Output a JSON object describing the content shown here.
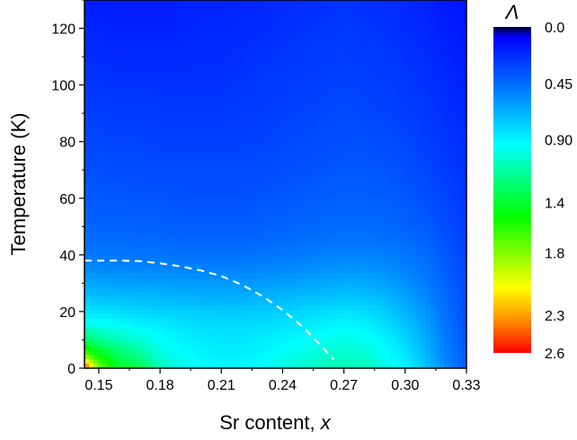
{
  "chart_data": {
    "type": "heatmap",
    "title": "",
    "xlabel_text": "Sr content, ",
    "xlabel_var": "x",
    "ylabel": "Temperature (K)",
    "xlim": [
      0.143,
      0.33
    ],
    "ylim": [
      0,
      130
    ],
    "x_ticks": [
      0.15,
      0.18,
      0.21,
      0.24,
      0.27,
      0.3,
      0.33
    ],
    "x_tick_labels": [
      "0.15",
      "0.18",
      "0.21",
      "0.24",
      "0.27",
      "0.30",
      "0.33"
    ],
    "y_ticks": [
      0,
      20,
      40,
      60,
      80,
      100,
      120
    ],
    "y_tick_labels": [
      "0",
      "20",
      "40",
      "60",
      "80",
      "100",
      "120"
    ],
    "grid": false,
    "colorbar": {
      "label": "Λ",
      "range": [
        0.0,
        2.6
      ],
      "reversed": true,
      "tick_values": [
        0.0,
        0.45,
        0.9,
        1.4,
        1.8,
        2.3,
        2.6
      ],
      "tick_labels": [
        "0.0",
        "0.45",
        "0.90",
        "1.4",
        "1.8",
        "2.3",
        "2.6"
      ],
      "colors": [
        "#000030",
        "#0000ff",
        "#0080ff",
        "#00ffff",
        "#00ff00",
        "#ffff00",
        "#ff8000",
        "#ff0000"
      ]
    },
    "field": {
      "description_units": "Lambda value in data units at (x, T)",
      "x": [
        0.143,
        0.15,
        0.16,
        0.17,
        0.18,
        0.19,
        0.2,
        0.21,
        0.22,
        0.23,
        0.24,
        0.25,
        0.26,
        0.27,
        0.28,
        0.29,
        0.3,
        0.31,
        0.32,
        0.33
      ],
      "y": [
        0,
        3,
        6,
        10,
        15,
        20,
        25,
        30,
        35,
        40,
        45,
        50,
        60,
        70,
        80,
        90,
        100,
        110,
        120,
        130
      ],
      "values": [
        [
          2.55,
          1.8,
          1.4,
          1.35,
          1.1,
          0.98,
          0.95,
          0.92,
          0.92,
          0.95,
          1.0,
          1.05,
          1.1,
          1.12,
          1.1,
          1.0,
          0.9,
          0.75,
          0.55,
          0.4
        ],
        [
          2.0,
          1.6,
          1.35,
          1.25,
          1.05,
          0.96,
          0.92,
          0.9,
          0.9,
          0.93,
          0.98,
          1.02,
          1.06,
          1.08,
          1.06,
          0.97,
          0.87,
          0.72,
          0.53,
          0.39
        ],
        [
          1.6,
          1.4,
          1.25,
          1.15,
          1.0,
          0.94,
          0.9,
          0.88,
          0.88,
          0.9,
          0.95,
          0.98,
          1.02,
          1.04,
          1.02,
          0.94,
          0.84,
          0.7,
          0.52,
          0.38
        ],
        [
          1.3,
          1.2,
          1.1,
          1.03,
          0.95,
          0.9,
          0.87,
          0.86,
          0.86,
          0.88,
          0.9,
          0.93,
          0.97,
          0.99,
          0.97,
          0.9,
          0.8,
          0.67,
          0.5,
          0.37
        ],
        [
          1.0,
          0.98,
          0.94,
          0.9,
          0.88,
          0.85,
          0.83,
          0.82,
          0.82,
          0.83,
          0.85,
          0.87,
          0.9,
          0.92,
          0.9,
          0.84,
          0.75,
          0.63,
          0.48,
          0.36
        ],
        [
          0.85,
          0.84,
          0.82,
          0.8,
          0.79,
          0.78,
          0.77,
          0.76,
          0.76,
          0.77,
          0.78,
          0.8,
          0.82,
          0.84,
          0.82,
          0.77,
          0.69,
          0.59,
          0.46,
          0.35
        ],
        [
          0.74,
          0.73,
          0.72,
          0.71,
          0.7,
          0.69,
          0.68,
          0.68,
          0.68,
          0.69,
          0.7,
          0.72,
          0.73,
          0.75,
          0.74,
          0.7,
          0.63,
          0.55,
          0.44,
          0.34
        ],
        [
          0.64,
          0.64,
          0.63,
          0.62,
          0.62,
          0.61,
          0.6,
          0.6,
          0.6,
          0.61,
          0.62,
          0.64,
          0.65,
          0.67,
          0.66,
          0.63,
          0.58,
          0.51,
          0.42,
          0.33
        ],
        [
          0.56,
          0.55,
          0.55,
          0.54,
          0.54,
          0.53,
          0.53,
          0.53,
          0.53,
          0.54,
          0.55,
          0.56,
          0.58,
          0.59,
          0.59,
          0.57,
          0.53,
          0.48,
          0.4,
          0.32
        ],
        [
          0.5,
          0.49,
          0.49,
          0.48,
          0.48,
          0.47,
          0.47,
          0.47,
          0.47,
          0.48,
          0.49,
          0.5,
          0.52,
          0.53,
          0.53,
          0.52,
          0.49,
          0.45,
          0.38,
          0.31
        ],
        [
          0.46,
          0.45,
          0.45,
          0.44,
          0.44,
          0.43,
          0.43,
          0.43,
          0.43,
          0.44,
          0.45,
          0.46,
          0.47,
          0.48,
          0.48,
          0.47,
          0.45,
          0.42,
          0.36,
          0.3
        ],
        [
          0.43,
          0.42,
          0.42,
          0.41,
          0.41,
          0.4,
          0.4,
          0.4,
          0.4,
          0.41,
          0.42,
          0.43,
          0.44,
          0.45,
          0.45,
          0.44,
          0.42,
          0.39,
          0.34,
          0.29
        ],
        [
          0.39,
          0.38,
          0.38,
          0.37,
          0.37,
          0.36,
          0.36,
          0.36,
          0.36,
          0.37,
          0.38,
          0.39,
          0.4,
          0.41,
          0.41,
          0.4,
          0.38,
          0.35,
          0.31,
          0.27
        ],
        [
          0.35,
          0.35,
          0.34,
          0.34,
          0.33,
          0.33,
          0.33,
          0.33,
          0.33,
          0.34,
          0.35,
          0.36,
          0.37,
          0.38,
          0.38,
          0.37,
          0.35,
          0.32,
          0.28,
          0.25
        ],
        [
          0.32,
          0.32,
          0.31,
          0.31,
          0.3,
          0.3,
          0.3,
          0.3,
          0.3,
          0.31,
          0.32,
          0.33,
          0.34,
          0.35,
          0.35,
          0.34,
          0.32,
          0.29,
          0.26,
          0.23
        ],
        [
          0.29,
          0.29,
          0.28,
          0.28,
          0.27,
          0.27,
          0.27,
          0.27,
          0.28,
          0.29,
          0.3,
          0.31,
          0.32,
          0.33,
          0.32,
          0.31,
          0.29,
          0.27,
          0.24,
          0.21
        ],
        [
          0.26,
          0.26,
          0.25,
          0.25,
          0.25,
          0.25,
          0.25,
          0.25,
          0.26,
          0.27,
          0.28,
          0.29,
          0.3,
          0.31,
          0.3,
          0.29,
          0.27,
          0.25,
          0.22,
          0.19
        ],
        [
          0.23,
          0.23,
          0.22,
          0.22,
          0.22,
          0.22,
          0.23,
          0.23,
          0.24,
          0.25,
          0.26,
          0.27,
          0.28,
          0.29,
          0.28,
          0.27,
          0.25,
          0.23,
          0.2,
          0.17
        ],
        [
          0.2,
          0.2,
          0.19,
          0.19,
          0.19,
          0.2,
          0.21,
          0.21,
          0.22,
          0.23,
          0.24,
          0.25,
          0.26,
          0.27,
          0.26,
          0.25,
          0.23,
          0.21,
          0.18,
          0.16
        ],
        [
          0.17,
          0.17,
          0.17,
          0.17,
          0.17,
          0.18,
          0.19,
          0.19,
          0.2,
          0.21,
          0.22,
          0.23,
          0.24,
          0.25,
          0.24,
          0.23,
          0.21,
          0.19,
          0.16,
          0.14
        ]
      ]
    },
    "overlay_curve": {
      "style": "dashed",
      "color": "#ffffff",
      "x": [
        0.143,
        0.15,
        0.16,
        0.17,
        0.18,
        0.19,
        0.2,
        0.21,
        0.22,
        0.23,
        0.24,
        0.25,
        0.26,
        0.265
      ],
      "y": [
        38,
        38,
        38,
        37.8,
        37,
        36,
        34.5,
        32.5,
        29.5,
        25.5,
        20.5,
        14.5,
        7,
        3
      ]
    }
  }
}
